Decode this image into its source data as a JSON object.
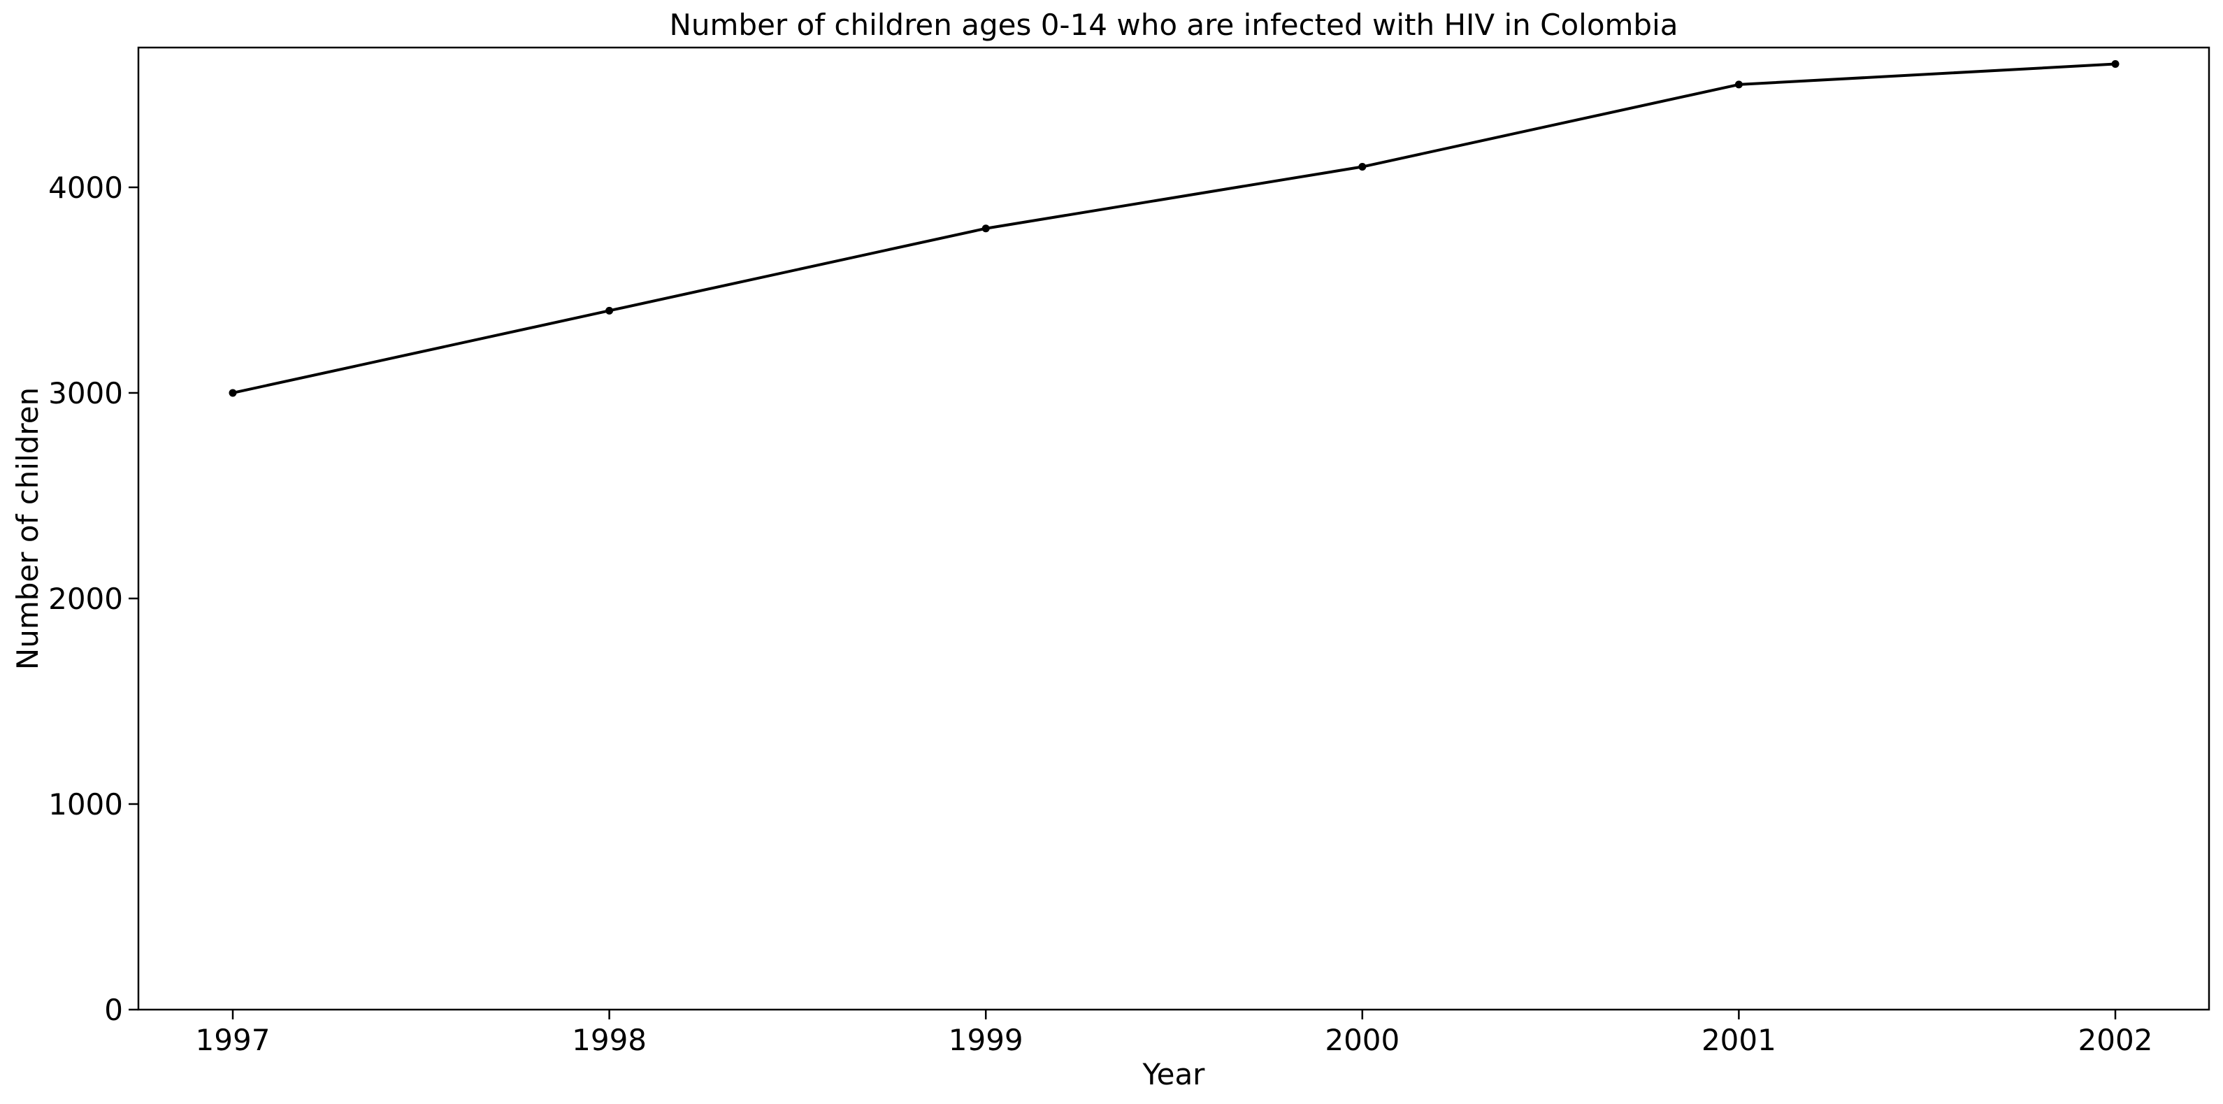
{
  "chart_data": {
    "type": "line",
    "title": "Number of children ages 0-14 who are infected with HIV in Colombia",
    "xlabel": "Year",
    "ylabel": "Number of children",
    "x": [
      "1997",
      "1998",
      "1999",
      "2000",
      "2001",
      "2002"
    ],
    "series": [
      {
        "values": [
          3000,
          3400,
          3800,
          4100,
          4500,
          4600
        ],
        "color": "#000000",
        "marker": "dot"
      }
    ],
    "ylim": [
      0,
      4680
    ],
    "yticks": [
      0,
      1000,
      2000,
      3000,
      4000
    ],
    "grid": false,
    "legend": "none"
  }
}
